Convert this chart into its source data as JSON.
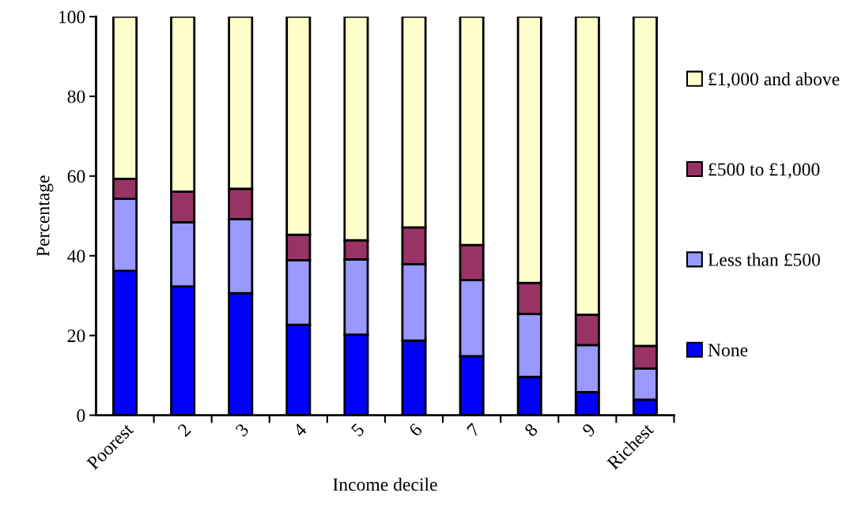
{
  "chart_data": {
    "type": "bar",
    "stacked": true,
    "xlabel": "Income decile",
    "ylabel": "Percentage",
    "categories": [
      "Poorest",
      "2",
      "3",
      "4",
      "5",
      "6",
      "7",
      "8",
      "9",
      "Richest"
    ],
    "ylim": [
      0,
      100
    ],
    "yticks": [
      0,
      20,
      40,
      60,
      80,
      100
    ],
    "grid": false,
    "legend": "right",
    "series": [
      {
        "name": "None",
        "color": "#0000ff",
        "values": [
          36.2,
          32.3,
          30.6,
          22.7,
          20.2,
          18.7,
          14.8,
          9.6,
          5.8,
          3.9
        ]
      },
      {
        "name": "Less than £500",
        "color": "#9999ff",
        "values": [
          18.1,
          16.1,
          18.6,
          16.2,
          18.9,
          19.2,
          19.1,
          15.8,
          11.8,
          7.8
        ]
      },
      {
        "name": "£500 to £1,000",
        "color": "#993366",
        "values": [
          5.0,
          7.7,
          7.6,
          6.4,
          4.8,
          9.2,
          8.8,
          7.8,
          7.6,
          5.7
        ]
      },
      {
        "name": "£1,000 and above",
        "color": "#ffffcc",
        "values": [
          40.7,
          43.9,
          43.2,
          54.7,
          56.1,
          52.9,
          57.3,
          66.8,
          74.8,
          82.6
        ]
      }
    ]
  }
}
